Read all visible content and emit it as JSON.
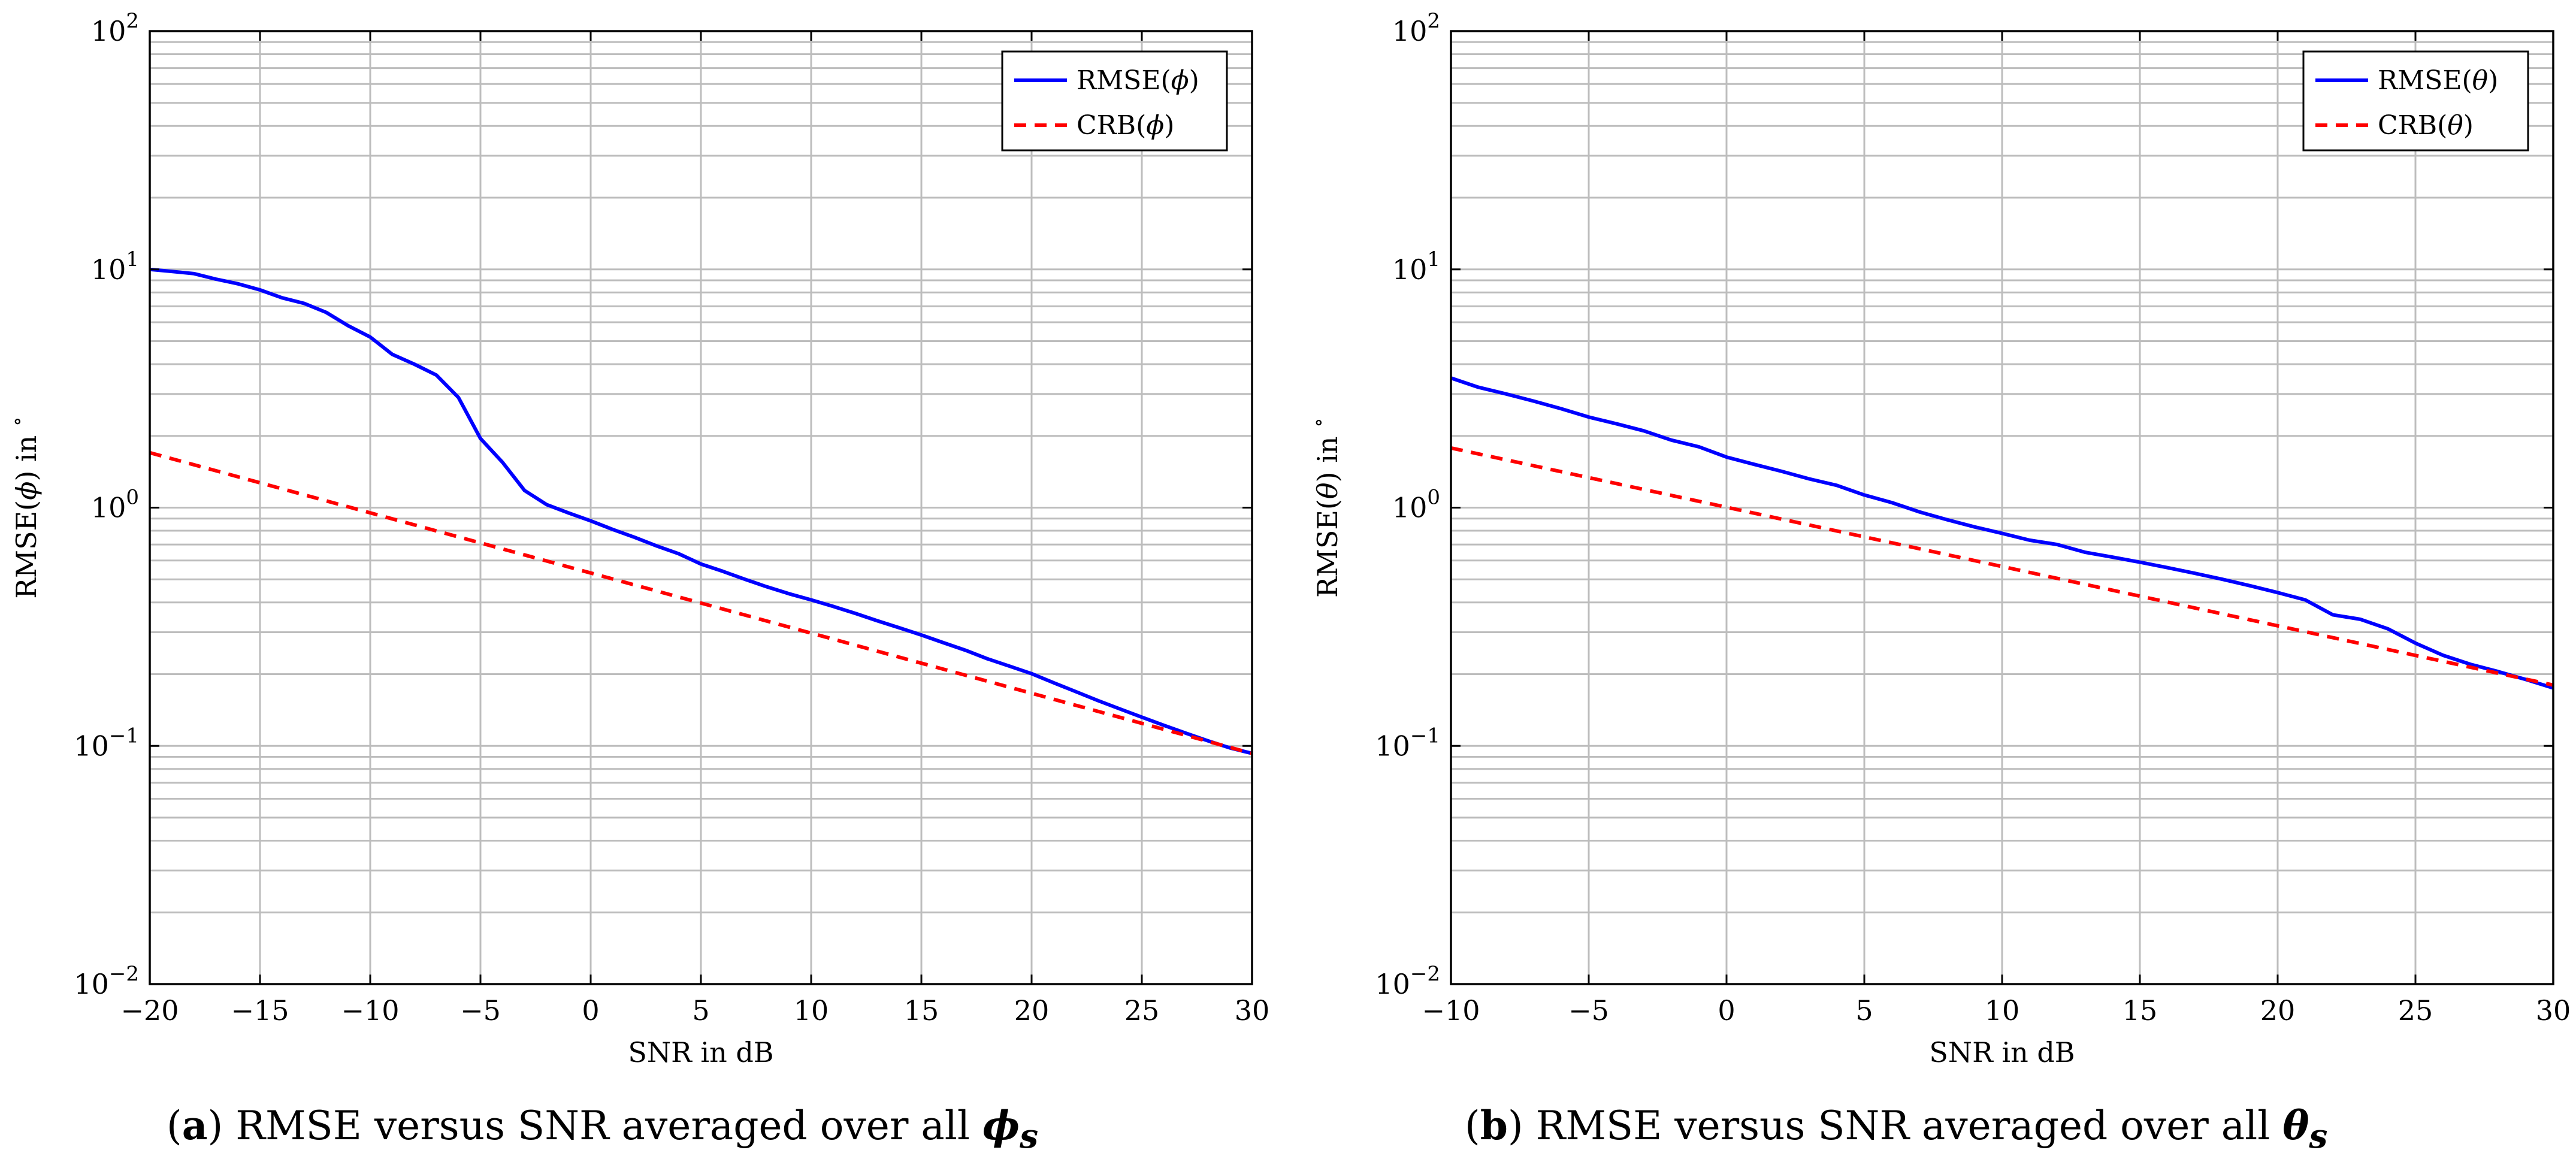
{
  "colors": {
    "rmse": "#0000ff",
    "crb": "#ff0000",
    "grid": "#bdbdbd",
    "frame": "#000000"
  },
  "chart_data": [
    {
      "type": "line",
      "panel": "a",
      "xlabel": "SNR in dB",
      "ylabel_parts": [
        "RMSE(",
        "ϕ",
        ") in ",
        "∘"
      ],
      "xlim": [
        -20,
        30
      ],
      "ylim": [
        0.01,
        100
      ],
      "yscale": "log",
      "grid": true,
      "legend_position": "top-right",
      "xticks": [
        -20,
        -15,
        -10,
        -5,
        0,
        5,
        10,
        15,
        20,
        25,
        30
      ],
      "xtick_labels": [
        "−20",
        "−15",
        "−10",
        "−5",
        "0",
        "5",
        "10",
        "15",
        "20",
        "25",
        "30"
      ],
      "ytick_labels": [
        {
          "base": "10",
          "exp": "−2"
        },
        {
          "base": "10",
          "exp": "−1"
        },
        {
          "base": "10",
          "exp": "0"
        },
        {
          "base": "10",
          "exp": "1"
        },
        {
          "base": "10",
          "exp": "2"
        }
      ],
      "series": [
        {
          "name": "RMSE(ϕ)",
          "legend_parts": [
            "RMSE(",
            "ϕ",
            ")"
          ],
          "style": "solid",
          "x": [
            -20,
            -19,
            -18,
            -17,
            -16,
            -15,
            -14,
            -13,
            -12,
            -11,
            -10,
            -9,
            -8,
            -7,
            -6,
            -5,
            -4,
            -3,
            -2,
            -1,
            0,
            1,
            2,
            3,
            4,
            5,
            6,
            7,
            8,
            9,
            10,
            11,
            12,
            13,
            14,
            15,
            16,
            17,
            18,
            19,
            20,
            21,
            22,
            23,
            24,
            25,
            26,
            27,
            28,
            29,
            30
          ],
          "y": [
            10.0,
            9.8,
            9.6,
            9.1,
            8.7,
            8.2,
            7.6,
            7.2,
            6.6,
            5.8,
            5.2,
            4.4,
            4.0,
            3.6,
            2.9,
            1.95,
            1.55,
            1.18,
            1.03,
            0.95,
            0.88,
            0.81,
            0.75,
            0.69,
            0.64,
            0.58,
            0.54,
            0.5,
            0.465,
            0.435,
            0.41,
            0.385,
            0.36,
            0.335,
            0.313,
            0.292,
            0.271,
            0.252,
            0.232,
            0.216,
            0.201,
            0.184,
            0.169,
            0.155,
            0.143,
            0.132,
            0.122,
            0.113,
            0.105,
            0.098,
            0.093
          ]
        },
        {
          "name": "CRB(ϕ)",
          "legend_parts": [
            "CRB(",
            "ϕ",
            ")"
          ],
          "style": "dashed",
          "x": [
            -20,
            30
          ],
          "y": [
            1.7,
            0.093
          ]
        }
      ]
    },
    {
      "type": "line",
      "panel": "b",
      "xlabel": "SNR in dB",
      "ylabel_parts": [
        "RMSE(",
        "θ",
        ") in ",
        "∘"
      ],
      "xlim": [
        -10,
        30
      ],
      "ylim": [
        0.01,
        100
      ],
      "yscale": "log",
      "grid": true,
      "legend_position": "top-right",
      "xticks": [
        -10,
        -5,
        0,
        5,
        10,
        15,
        20,
        25,
        30
      ],
      "xtick_labels": [
        "−10",
        "−5",
        "0",
        "5",
        "10",
        "15",
        "20",
        "25",
        "30"
      ],
      "ytick_labels": [
        {
          "base": "10",
          "exp": "−2"
        },
        {
          "base": "10",
          "exp": "−1"
        },
        {
          "base": "10",
          "exp": "0"
        },
        {
          "base": "10",
          "exp": "1"
        },
        {
          "base": "10",
          "exp": "2"
        }
      ],
      "series": [
        {
          "name": "RMSE(θ)",
          "legend_parts": [
            "RMSE(",
            "θ",
            ")"
          ],
          "style": "solid",
          "x": [
            -10,
            -9,
            -8,
            -7,
            -6,
            -5,
            -4,
            -3,
            -2,
            -1,
            0,
            1,
            2,
            3,
            4,
            5,
            6,
            7,
            8,
            9,
            10,
            11,
            12,
            13,
            14,
            15,
            16,
            17,
            18,
            19,
            20,
            21,
            22,
            23,
            24,
            25,
            26,
            27,
            28,
            29,
            30
          ],
          "y": [
            3.5,
            3.2,
            3.0,
            2.8,
            2.6,
            2.4,
            2.25,
            2.1,
            1.92,
            1.8,
            1.63,
            1.52,
            1.42,
            1.32,
            1.24,
            1.13,
            1.05,
            0.96,
            0.89,
            0.83,
            0.78,
            0.73,
            0.7,
            0.65,
            0.62,
            0.59,
            0.56,
            0.53,
            0.5,
            0.47,
            0.44,
            0.41,
            0.355,
            0.34,
            0.31,
            0.27,
            0.24,
            0.22,
            0.205,
            0.19,
            0.175
          ]
        },
        {
          "name": "CRB(θ)",
          "legend_parts": [
            "CRB(",
            "θ",
            ")"
          ],
          "style": "dashed",
          "x": [
            -10,
            30
          ],
          "y": [
            1.78,
            0.18
          ]
        }
      ]
    }
  ],
  "captions": [
    {
      "label": "a",
      "text": " RMSE versus SNR averaged over all ",
      "symbol": "ϕ",
      "subscript": "s"
    },
    {
      "label": "b",
      "text": " RMSE versus SNR averaged over all ",
      "symbol": "θ",
      "subscript": "s"
    }
  ]
}
